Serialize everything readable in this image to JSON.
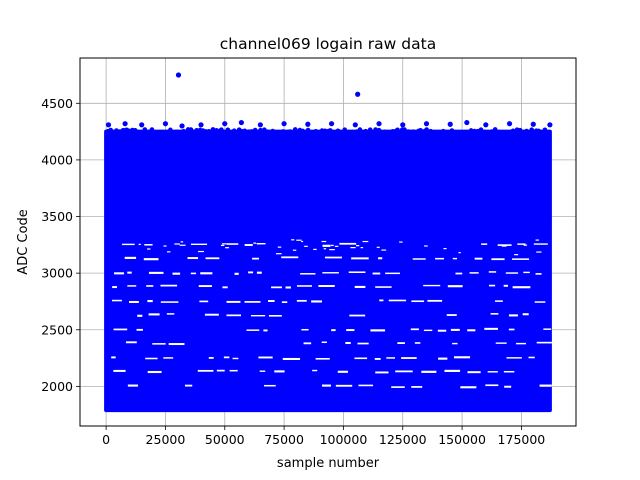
{
  "chart_data": {
    "type": "scatter",
    "title": "channel069 logain raw data",
    "xlabel": "sample number",
    "ylabel": "ADC Code",
    "xlim": [
      -11000,
      198000
    ],
    "ylim": [
      1650,
      4900
    ],
    "xticks": [
      0,
      25000,
      50000,
      75000,
      100000,
      125000,
      150000,
      175000
    ],
    "yticks": [
      2000,
      2500,
      3000,
      3500,
      4000,
      4500
    ],
    "grid": true,
    "marker_color": "#0000ff",
    "series": [
      {
        "x_range": [
          0,
          187000
        ],
        "band_min": 1790,
        "band_max": 4250,
        "dense_top": [
          3300,
          4250
        ],
        "sparse_levels": [
          2000,
          2130,
          2250,
          2380,
          2500,
          2630,
          2750,
          2880,
          3000,
          3130,
          3250
        ],
        "outer_points": [
          [
            30500,
            4750
          ],
          [
            106000,
            4580
          ],
          [
            1000,
            4310
          ],
          [
            8000,
            4320
          ],
          [
            15000,
            4310
          ],
          [
            25000,
            4320
          ],
          [
            32000,
            4300
          ],
          [
            40000,
            4310
          ],
          [
            50000,
            4320
          ],
          [
            57000,
            4330
          ],
          [
            65000,
            4310
          ],
          [
            75000,
            4320
          ],
          [
            85000,
            4315
          ],
          [
            95000,
            4320
          ],
          [
            105000,
            4310
          ],
          [
            115000,
            4320
          ],
          [
            125000,
            4310
          ],
          [
            135000,
            4320
          ],
          [
            145000,
            4315
          ],
          [
            152000,
            4330
          ],
          [
            160000,
            4310
          ],
          [
            170000,
            4320
          ],
          [
            180000,
            4315
          ],
          [
            187000,
            4310
          ]
        ]
      }
    ]
  }
}
